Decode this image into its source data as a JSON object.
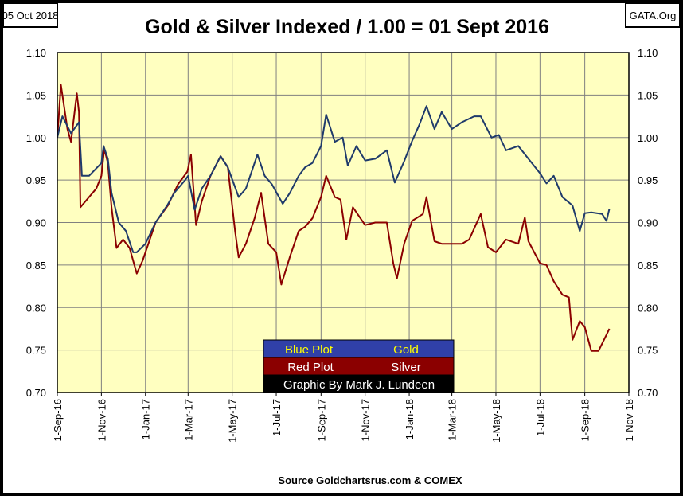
{
  "header": {
    "date": "05 Oct 2018",
    "source_site": "GATA.Org"
  },
  "footer": {
    "source": "Source Goldchartsrus.com & COMEX"
  },
  "legend": {
    "rows": [
      {
        "left": "Blue Plot",
        "right": "Gold",
        "bg": "#3040A8",
        "fg": "#FFFF00"
      },
      {
        "left": "Red Plot",
        "right": "Silver",
        "bg": "#8B0000",
        "fg": "#FFFFFF"
      }
    ],
    "credit": "Graphic By Mark J. Lundeen"
  },
  "colors": {
    "background": "#FFFFC0",
    "grid": "#808080",
    "gold": "#1F3A6B",
    "silver": "#8B0000"
  },
  "chart_data": {
    "type": "line",
    "title": "Gold & Silver Indexed / 1.00 = 01 Sept 2016",
    "xlabel": "",
    "ylabel": "",
    "ylim": [
      0.7,
      1.1
    ],
    "xlim": [
      "2016-09-01",
      "2018-11-01"
    ],
    "grid": true,
    "yticks": [
      "1.10",
      "1.05",
      "1.00",
      "0.95",
      "0.90",
      "0.85",
      "0.80",
      "0.75",
      "0.70"
    ],
    "xticks": [
      {
        "date": "2016-09-01",
        "label": "1-Sep-16"
      },
      {
        "date": "2016-11-01",
        "label": "1-Nov-16"
      },
      {
        "date": "2017-01-01",
        "label": "1-Jan-17"
      },
      {
        "date": "2017-03-01",
        "label": "1-Mar-17"
      },
      {
        "date": "2017-05-01",
        "label": "1-May-17"
      },
      {
        "date": "2017-07-01",
        "label": "1-Jul-17"
      },
      {
        "date": "2017-09-01",
        "label": "1-Sep-17"
      },
      {
        "date": "2017-11-01",
        "label": "1-Nov-17"
      },
      {
        "date": "2018-01-01",
        "label": "1-Jan-18"
      },
      {
        "date": "2018-03-01",
        "label": "1-Mar-18"
      },
      {
        "date": "2018-05-01",
        "label": "1-May-18"
      },
      {
        "date": "2018-07-01",
        "label": "1-Jul-18"
      },
      {
        "date": "2018-09-01",
        "label": "1-Sep-18"
      },
      {
        "date": "2018-11-01",
        "label": "1-Nov-18"
      }
    ],
    "series": [
      {
        "name": "Gold",
        "points": [
          [
            "2016-09-01",
            1.0
          ],
          [
            "2016-09-08",
            1.025
          ],
          [
            "2016-09-20",
            1.005
          ],
          [
            "2016-10-01",
            1.018
          ],
          [
            "2016-10-05",
            0.955
          ],
          [
            "2016-10-15",
            0.955
          ],
          [
            "2016-11-01",
            0.97
          ],
          [
            "2016-11-04",
            0.99
          ],
          [
            "2016-11-10",
            0.975
          ],
          [
            "2016-11-15",
            0.935
          ],
          [
            "2016-11-25",
            0.9
          ],
          [
            "2016-12-05",
            0.89
          ],
          [
            "2016-12-15",
            0.865
          ],
          [
            "2016-12-20",
            0.865
          ],
          [
            "2017-01-01",
            0.875
          ],
          [
            "2017-01-15",
            0.9
          ],
          [
            "2017-01-31",
            0.92
          ],
          [
            "2017-02-10",
            0.935
          ],
          [
            "2017-02-25",
            0.95
          ],
          [
            "2017-03-01",
            0.955
          ],
          [
            "2017-03-10",
            0.915
          ],
          [
            "2017-03-20",
            0.94
          ],
          [
            "2017-04-01",
            0.955
          ],
          [
            "2017-04-15",
            0.978
          ],
          [
            "2017-04-25",
            0.965
          ],
          [
            "2017-05-10",
            0.93
          ],
          [
            "2017-05-20",
            0.94
          ],
          [
            "2017-06-05",
            0.98
          ],
          [
            "2017-06-15",
            0.955
          ],
          [
            "2017-06-25",
            0.945
          ],
          [
            "2017-07-10",
            0.922
          ],
          [
            "2017-07-20",
            0.935
          ],
          [
            "2017-08-01",
            0.955
          ],
          [
            "2017-08-10",
            0.965
          ],
          [
            "2017-08-20",
            0.97
          ],
          [
            "2017-09-01",
            0.99
          ],
          [
            "2017-09-08",
            1.027
          ],
          [
            "2017-09-20",
            0.995
          ],
          [
            "2017-10-01",
            1.0
          ],
          [
            "2017-10-08",
            0.967
          ],
          [
            "2017-10-20",
            0.99
          ],
          [
            "2017-11-01",
            0.973
          ],
          [
            "2017-11-15",
            0.975
          ],
          [
            "2017-12-01",
            0.985
          ],
          [
            "2017-12-12",
            0.947
          ],
          [
            "2017-12-25",
            0.972
          ],
          [
            "2018-01-05",
            0.996
          ],
          [
            "2018-01-15",
            1.015
          ],
          [
            "2018-01-25",
            1.037
          ],
          [
            "2018-02-05",
            1.01
          ],
          [
            "2018-02-15",
            1.03
          ],
          [
            "2018-03-01",
            1.01
          ],
          [
            "2018-03-15",
            1.018
          ],
          [
            "2018-04-01",
            1.025
          ],
          [
            "2018-04-10",
            1.025
          ],
          [
            "2018-04-25",
            1.0
          ],
          [
            "2018-05-05",
            1.003
          ],
          [
            "2018-05-15",
            0.985
          ],
          [
            "2018-06-01",
            0.99
          ],
          [
            "2018-06-15",
            0.975
          ],
          [
            "2018-07-01",
            0.958
          ],
          [
            "2018-07-10",
            0.946
          ],
          [
            "2018-07-20",
            0.955
          ],
          [
            "2018-08-01",
            0.93
          ],
          [
            "2018-08-15",
            0.92
          ],
          [
            "2018-08-25",
            0.89
          ],
          [
            "2018-09-01",
            0.911
          ],
          [
            "2018-09-10",
            0.912
          ],
          [
            "2018-09-25",
            0.91
          ],
          [
            "2018-10-01",
            0.902
          ],
          [
            "2018-10-05",
            0.916
          ]
        ]
      },
      {
        "name": "Silver",
        "points": [
          [
            "2016-09-01",
            1.0
          ],
          [
            "2016-09-06",
            1.062
          ],
          [
            "2016-09-15",
            1.01
          ],
          [
            "2016-09-20",
            0.995
          ],
          [
            "2016-09-28",
            1.052
          ],
          [
            "2016-10-01",
            1.03
          ],
          [
            "2016-10-03",
            0.918
          ],
          [
            "2016-10-15",
            0.93
          ],
          [
            "2016-10-25",
            0.94
          ],
          [
            "2016-11-01",
            0.955
          ],
          [
            "2016-11-05",
            0.987
          ],
          [
            "2016-11-10",
            0.97
          ],
          [
            "2016-11-15",
            0.918
          ],
          [
            "2016-11-22",
            0.87
          ],
          [
            "2016-12-01",
            0.88
          ],
          [
            "2016-12-10",
            0.87
          ],
          [
            "2016-12-20",
            0.84
          ],
          [
            "2016-12-28",
            0.855
          ],
          [
            "2017-01-05",
            0.875
          ],
          [
            "2017-01-15",
            0.9
          ],
          [
            "2017-02-01",
            0.92
          ],
          [
            "2017-02-15",
            0.945
          ],
          [
            "2017-02-28",
            0.96
          ],
          [
            "2017-03-05",
            0.98
          ],
          [
            "2017-03-12",
            0.897
          ],
          [
            "2017-03-20",
            0.925
          ],
          [
            "2017-04-01",
            0.955
          ],
          [
            "2017-04-15",
            0.978
          ],
          [
            "2017-04-25",
            0.965
          ],
          [
            "2017-05-05",
            0.89
          ],
          [
            "2017-05-10",
            0.859
          ],
          [
            "2017-05-20",
            0.875
          ],
          [
            "2017-06-01",
            0.905
          ],
          [
            "2017-06-10",
            0.935
          ],
          [
            "2017-06-20",
            0.875
          ],
          [
            "2017-07-01",
            0.865
          ],
          [
            "2017-07-08",
            0.827
          ],
          [
            "2017-07-20",
            0.86
          ],
          [
            "2017-08-01",
            0.89
          ],
          [
            "2017-08-10",
            0.895
          ],
          [
            "2017-08-20",
            0.905
          ],
          [
            "2017-09-01",
            0.93
          ],
          [
            "2017-09-08",
            0.955
          ],
          [
            "2017-09-20",
            0.93
          ],
          [
            "2017-09-28",
            0.927
          ],
          [
            "2017-10-06",
            0.88
          ],
          [
            "2017-10-15",
            0.918
          ],
          [
            "2017-11-01",
            0.897
          ],
          [
            "2017-11-15",
            0.9
          ],
          [
            "2017-12-01",
            0.9
          ],
          [
            "2017-12-10",
            0.852
          ],
          [
            "2017-12-15",
            0.834
          ],
          [
            "2017-12-25",
            0.875
          ],
          [
            "2018-01-05",
            0.902
          ],
          [
            "2018-01-20",
            0.91
          ],
          [
            "2018-01-25",
            0.93
          ],
          [
            "2018-02-05",
            0.878
          ],
          [
            "2018-02-15",
            0.875
          ],
          [
            "2018-03-01",
            0.875
          ],
          [
            "2018-03-15",
            0.875
          ],
          [
            "2018-03-25",
            0.88
          ],
          [
            "2018-04-10",
            0.91
          ],
          [
            "2018-04-20",
            0.871
          ],
          [
            "2018-05-01",
            0.865
          ],
          [
            "2018-05-15",
            0.88
          ],
          [
            "2018-06-01",
            0.875
          ],
          [
            "2018-06-10",
            0.906
          ],
          [
            "2018-06-15",
            0.878
          ],
          [
            "2018-07-01",
            0.852
          ],
          [
            "2018-07-10",
            0.85
          ],
          [
            "2018-07-20",
            0.831
          ],
          [
            "2018-08-01",
            0.815
          ],
          [
            "2018-08-10",
            0.812
          ],
          [
            "2018-08-15",
            0.762
          ],
          [
            "2018-08-25",
            0.784
          ],
          [
            "2018-09-01",
            0.777
          ],
          [
            "2018-09-10",
            0.749
          ],
          [
            "2018-09-20",
            0.749
          ],
          [
            "2018-10-01",
            0.768
          ],
          [
            "2018-10-05",
            0.775
          ]
        ]
      }
    ]
  }
}
